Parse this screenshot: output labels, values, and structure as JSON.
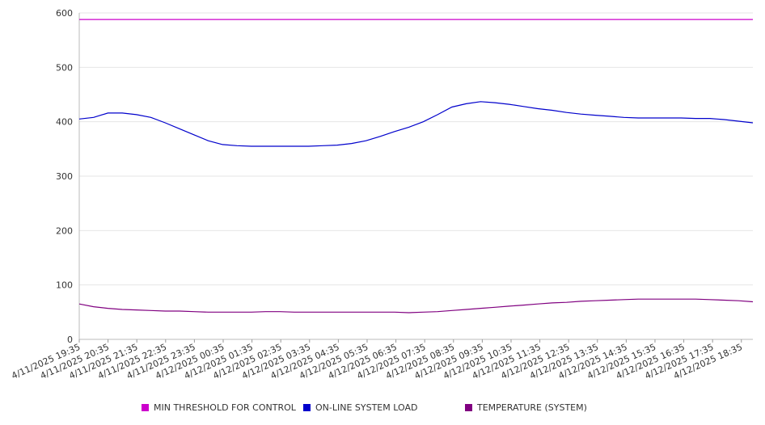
{
  "chart_data": {
    "type": "line",
    "title": "",
    "xlabel": "",
    "ylabel": "",
    "ylim": [
      0,
      600
    ],
    "yticks": [
      0,
      100,
      200,
      300,
      400,
      500,
      600
    ],
    "grid": true,
    "legend_position": "bottom",
    "x_tick_labels": [
      "4/11/2025 19:35",
      "4/11/2025 20:35",
      "4/11/2025 21:35",
      "4/11/2025 22:35",
      "4/11/2025 23:35",
      "4/12/2025 00:35",
      "4/12/2025 01:35",
      "4/12/2025 02:35",
      "4/12/2025 03:35",
      "4/12/2025 04:35",
      "4/12/2025 05:35",
      "4/12/2025 06:35",
      "4/12/2025 07:35",
      "4/12/2025 08:35",
      "4/12/2025 09:35",
      "4/12/2025 10:35",
      "4/12/2025 11:35",
      "4/12/2025 12:35",
      "4/12/2025 13:35",
      "4/12/2025 14:35",
      "4/12/2025 15:35",
      "4/12/2025 16:35",
      "4/12/2025 17:35",
      "4/12/2025 18:35"
    ],
    "x": [
      "4/11/2025 19:35",
      "4/11/2025 20:05",
      "4/11/2025 20:35",
      "4/11/2025 21:05",
      "4/11/2025 21:35",
      "4/11/2025 22:05",
      "4/11/2025 22:35",
      "4/11/2025 23:05",
      "4/11/2025 23:35",
      "4/12/2025 00:05",
      "4/12/2025 00:35",
      "4/12/2025 01:05",
      "4/12/2025 01:35",
      "4/12/2025 02:05",
      "4/12/2025 02:35",
      "4/12/2025 03:05",
      "4/12/2025 03:35",
      "4/12/2025 04:05",
      "4/12/2025 04:35",
      "4/12/2025 05:05",
      "4/12/2025 05:35",
      "4/12/2025 06:05",
      "4/12/2025 06:35",
      "4/12/2025 07:05",
      "4/12/2025 07:35",
      "4/12/2025 08:05",
      "4/12/2025 08:35",
      "4/12/2025 09:05",
      "4/12/2025 09:35",
      "4/12/2025 10:05",
      "4/12/2025 10:35",
      "4/12/2025 11:05",
      "4/12/2025 11:35",
      "4/12/2025 12:05",
      "4/12/2025 12:35",
      "4/12/2025 13:05",
      "4/12/2025 13:35",
      "4/12/2025 14:05",
      "4/12/2025 14:35",
      "4/12/2025 15:05",
      "4/12/2025 15:35",
      "4/12/2025 16:05",
      "4/12/2025 16:35",
      "4/12/2025 17:05",
      "4/12/2025 17:35",
      "4/12/2025 18:05",
      "4/12/2025 18:35",
      "4/12/2025 19:00"
    ],
    "series": [
      {
        "name": "MIN THRESHOLD FOR CONTROL",
        "color": "#CC00CC",
        "values": [
          588,
          588,
          588,
          588,
          588,
          588,
          588,
          588,
          588,
          588,
          588,
          588,
          588,
          588,
          588,
          588,
          588,
          588,
          588,
          588,
          588,
          588,
          588,
          588,
          588,
          588,
          588,
          588,
          588,
          588,
          588,
          588,
          588,
          588,
          588,
          588,
          588,
          588,
          588,
          588,
          588,
          588,
          588,
          588,
          588,
          588,
          588,
          588
        ]
      },
      {
        "name": "ON-LINE SYSTEM LOAD",
        "color": "#0000CC",
        "values": [
          405,
          408,
          416,
          416,
          413,
          408,
          398,
          387,
          376,
          365,
          358,
          356,
          355,
          355,
          355,
          355,
          355,
          356,
          357,
          360,
          365,
          373,
          382,
          390,
          400,
          413,
          427,
          433,
          437,
          435,
          432,
          428,
          424,
          421,
          417,
          414,
          412,
          410,
          408,
          407,
          407,
          407,
          407,
          406,
          406,
          404,
          401,
          398
        ]
      },
      {
        "name": "TEMPERATURE (SYSTEM)",
        "color": "#800080",
        "values": [
          65,
          60,
          57,
          55,
          54,
          53,
          52,
          52,
          51,
          50,
          50,
          50,
          50,
          51,
          51,
          50,
          50,
          50,
          50,
          50,
          50,
          50,
          50,
          49,
          50,
          51,
          53,
          55,
          57,
          59,
          61,
          63,
          65,
          67,
          68,
          70,
          71,
          72,
          73,
          74,
          74,
          74,
          74,
          74,
          73,
          72,
          71,
          69
        ]
      }
    ]
  }
}
